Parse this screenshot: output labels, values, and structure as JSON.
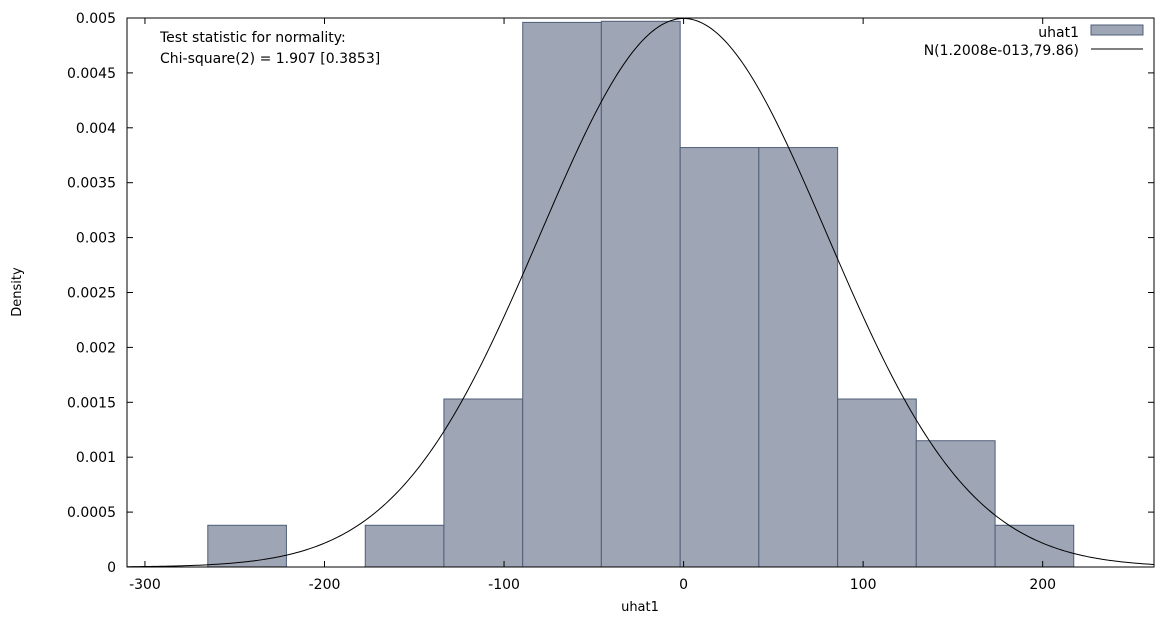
{
  "chart_data": {
    "type": "bar",
    "subtype": "histogram-with-density",
    "xlabel": "uhat1",
    "ylabel": "Density",
    "xlim": [
      -310,
      262
    ],
    "ylim": [
      0,
      0.005
    ],
    "x_ticks": [
      -300,
      -200,
      -100,
      0,
      100,
      200
    ],
    "x_tick_labels": [
      "-300",
      "-200",
      "-100",
      "0",
      "100",
      "200"
    ],
    "y_ticks": [
      0,
      0.0005,
      0.001,
      0.0015,
      0.002,
      0.0025,
      0.003,
      0.0035,
      0.004,
      0.0045,
      0.005
    ],
    "y_tick_labels": [
      "0",
      "0.0005",
      "0.001",
      "0.0015",
      "0.002",
      "0.0025",
      "0.003",
      "0.0035",
      "0.004",
      "0.0045",
      "0.005"
    ],
    "bar_color": "#9ea5b5",
    "bar_edge_color": "#4f5e78",
    "bins": [
      {
        "x0": -265.0,
        "x1": -221.2,
        "density": 0.00038
      },
      {
        "x0": -221.2,
        "x1": -177.3,
        "density": 0.0
      },
      {
        "x0": -177.3,
        "x1": -133.5,
        "density": 0.00038
      },
      {
        "x0": -133.5,
        "x1": -89.6,
        "density": 0.00153
      },
      {
        "x0": -89.6,
        "x1": -45.8,
        "density": 0.00496
      },
      {
        "x0": -45.8,
        "x1": -1.9,
        "density": 0.00497
      },
      {
        "x0": -1.9,
        "x1": 41.9,
        "density": 0.00382
      },
      {
        "x0": 41.9,
        "x1": 85.8,
        "density": 0.00382
      },
      {
        "x0": 85.8,
        "x1": 129.6,
        "density": 0.00153
      },
      {
        "x0": 129.6,
        "x1": 173.5,
        "density": 0.00115
      },
      {
        "x0": 173.5,
        "x1": 217.3,
        "density": 0.00038
      }
    ],
    "normal_curve": {
      "mean": 1.2008e-13,
      "sd": 79.86
    },
    "legend": {
      "position": "top-right",
      "entries": [
        {
          "label": "uhat1",
          "kind": "bar"
        },
        {
          "label": "N(1.2008e-013,79.86)",
          "kind": "line"
        }
      ]
    },
    "annotation": [
      "Test statistic for normality:",
      "Chi-square(2) = 1.907 [0.3853]"
    ],
    "grid": false
  }
}
